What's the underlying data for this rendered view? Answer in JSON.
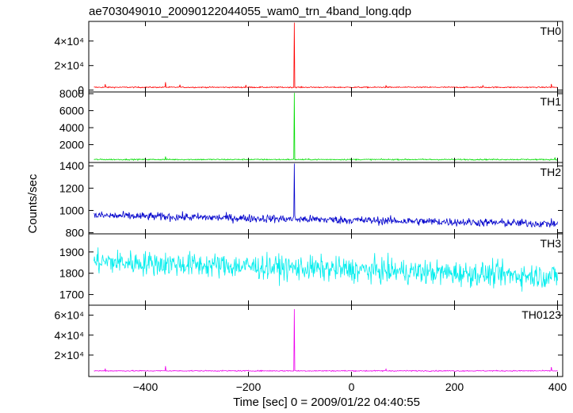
{
  "title": "ae703049010_20090122044055_wam0_trn_4band_long.qdp",
  "xlabel": "Time [sec] 0 = 2009/01/22 04:40:55",
  "ylabel": "Counts/sec",
  "chart_data": [
    {
      "type": "line",
      "panel": "TH0",
      "color": "#ff0000",
      "xlim": [
        -510,
        410
      ],
      "ylim": [
        -1500,
        56000
      ],
      "yticks": [
        {
          "v": 0,
          "label": "0"
        },
        {
          "v": 20000,
          "label": "2×10⁴"
        },
        {
          "v": 40000,
          "label": "4×10⁴"
        }
      ],
      "baseline": 2300,
      "noise": 450,
      "spikes": [
        {
          "x": -111,
          "y": 55000
        },
        {
          "x": -361,
          "y": 6500
        },
        {
          "x": -478,
          "y": 4800
        },
        {
          "x": -333,
          "y": 4400
        },
        {
          "x": -205,
          "y": 4200
        },
        {
          "x": 67,
          "y": 3900
        },
        {
          "x": 388,
          "y": 5000
        },
        {
          "x": 255,
          "y": 3700
        }
      ]
    },
    {
      "type": "line",
      "panel": "TH1",
      "color": "#00dd00",
      "xlim": [
        -510,
        410
      ],
      "ylim": [
        -100,
        8200
      ],
      "yticks": [
        {
          "v": 2000,
          "label": "2000"
        },
        {
          "v": 4000,
          "label": "4000"
        },
        {
          "v": 6000,
          "label": "6000"
        },
        {
          "v": 8000,
          "label": "8000"
        }
      ],
      "baseline": 250,
      "noise": 70,
      "spikes": [
        {
          "x": -111,
          "y": 8100
        },
        {
          "x": -361,
          "y": 600
        },
        {
          "x": 395,
          "y": 500
        }
      ]
    },
    {
      "type": "line",
      "panel": "TH2",
      "color": "#0000cc",
      "xlim": [
        -510,
        410
      ],
      "ylim": [
        790,
        1430
      ],
      "yticks": [
        {
          "v": 800,
          "label": "800"
        },
        {
          "v": 1000,
          "label": "1000"
        },
        {
          "v": 1200,
          "label": "1200"
        },
        {
          "v": 1400,
          "label": "1400"
        }
      ],
      "baseline_start": 955,
      "baseline_end": 880,
      "noise": 35,
      "spikes": [
        {
          "x": -111,
          "y": 1420
        }
      ]
    },
    {
      "type": "line",
      "panel": "TH3",
      "color": "#00eeee",
      "xlim": [
        -510,
        410
      ],
      "ylim": [
        1650,
        1985
      ],
      "yticks": [
        {
          "v": 1700,
          "label": "1700"
        },
        {
          "v": 1800,
          "label": "1800"
        },
        {
          "v": 1900,
          "label": "1900"
        }
      ],
      "baseline_start": 1855,
      "baseline_end": 1785,
      "noise": 55,
      "spikes": []
    },
    {
      "type": "line",
      "panel": "TH0123",
      "color": "#ee00ee",
      "xlim": [
        -510,
        410
      ],
      "ylim": [
        -1500,
        70000
      ],
      "yticks": [
        {
          "v": 20000,
          "label": "2×10⁴"
        },
        {
          "v": 40000,
          "label": "4×10⁴"
        },
        {
          "v": 60000,
          "label": "6×10⁴"
        }
      ],
      "baseline": 4200,
      "noise": 500,
      "spikes": [
        {
          "x": -111,
          "y": 66000
        },
        {
          "x": -361,
          "y": 9000
        },
        {
          "x": -478,
          "y": 6500
        },
        {
          "x": 67,
          "y": 6000
        },
        {
          "x": 388,
          "y": 8000
        }
      ]
    }
  ],
  "xticks": [
    {
      "v": -400,
      "label": "−400"
    },
    {
      "v": -200,
      "label": "−200"
    },
    {
      "v": 0,
      "label": "0"
    },
    {
      "v": 200,
      "label": "200"
    },
    {
      "v": 400,
      "label": "400"
    }
  ]
}
